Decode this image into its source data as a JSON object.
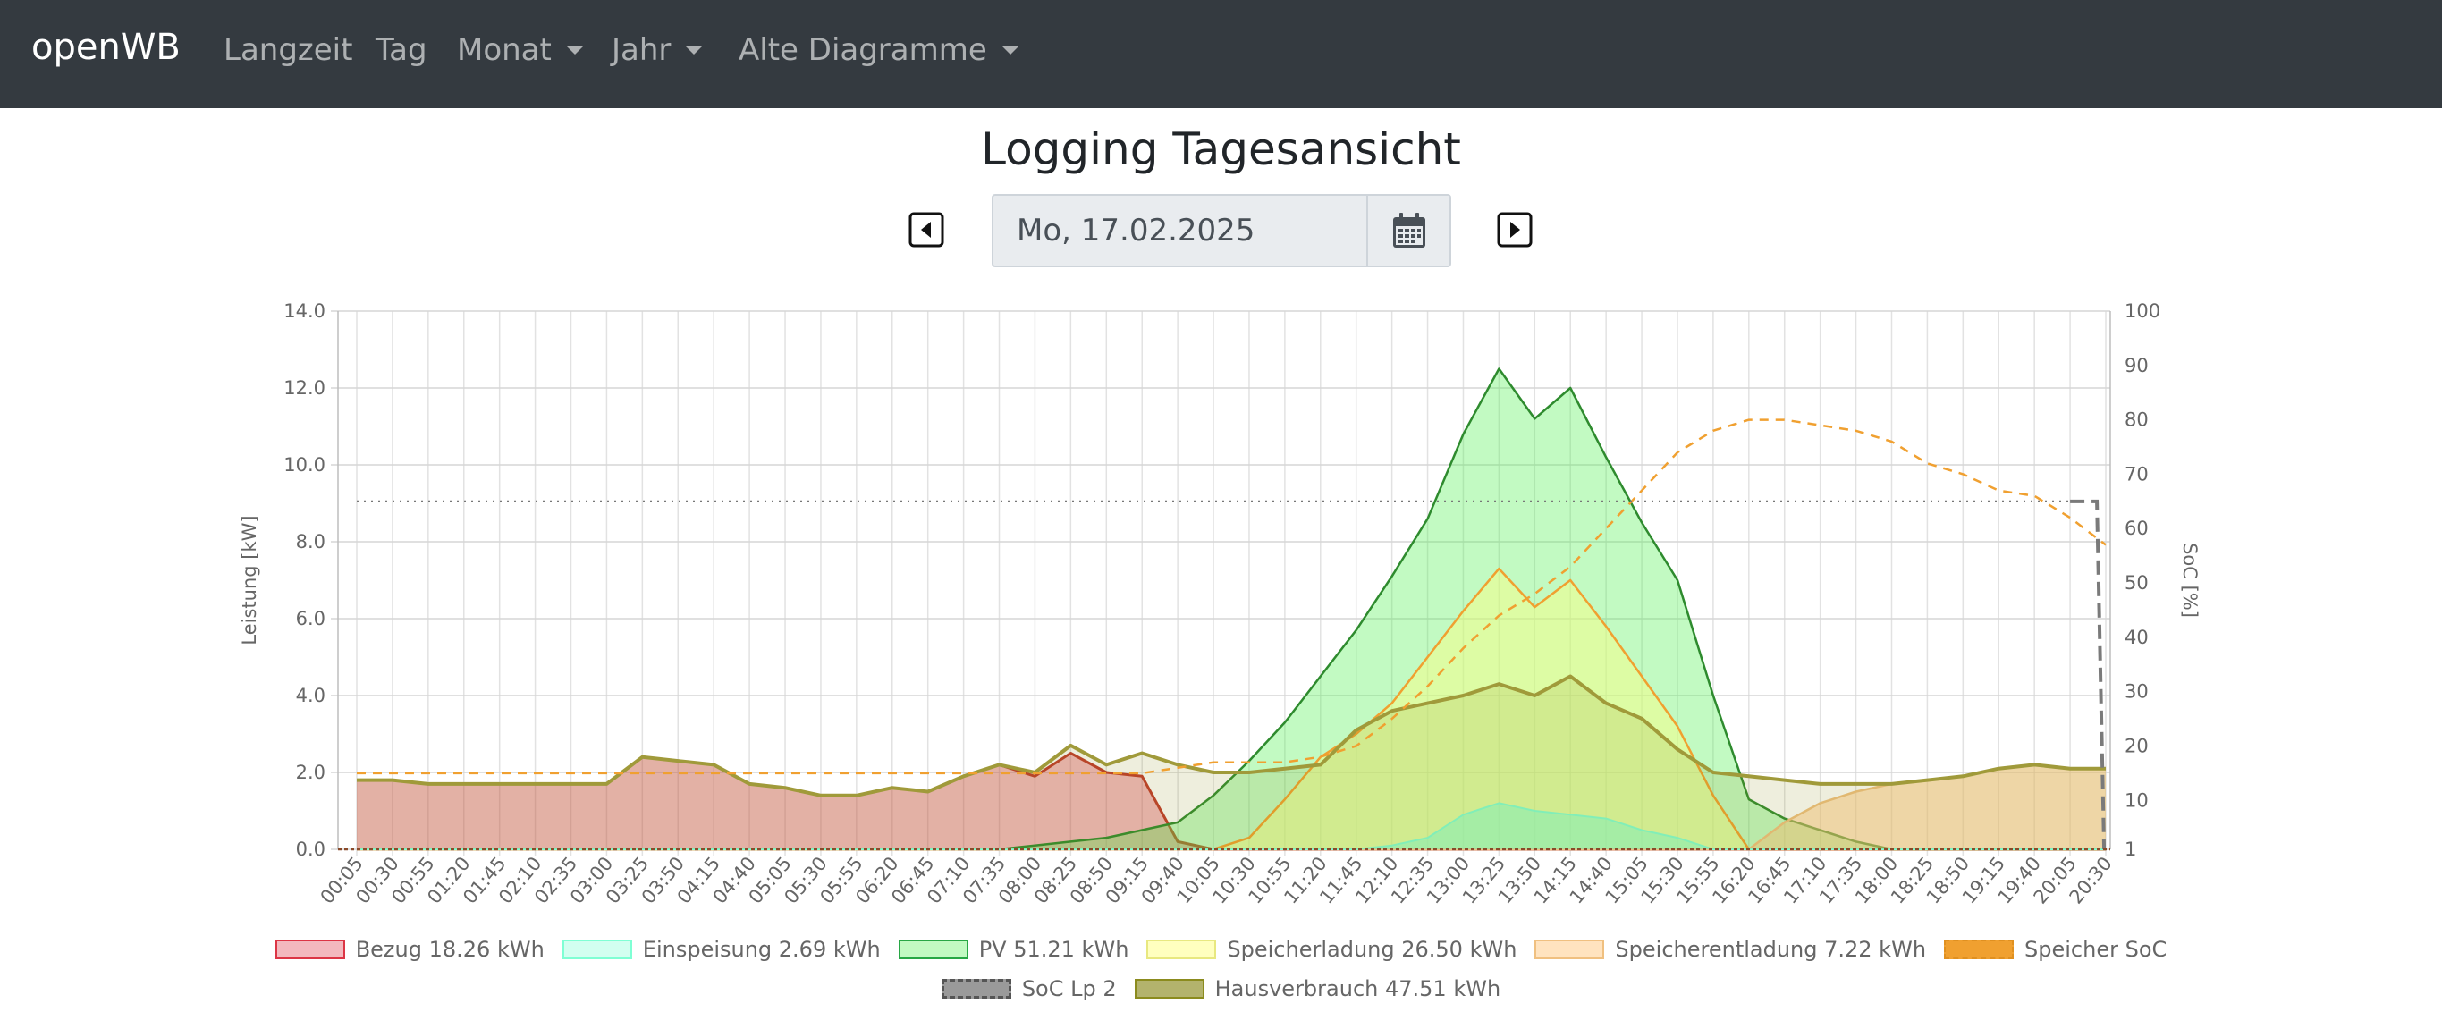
{
  "navbar": {
    "brand": "openWB",
    "items": [
      "Langzeit",
      "Tag",
      "Monat",
      "Jahr",
      "Alte Diagramme"
    ]
  },
  "page": {
    "title": "Logging Tagesansicht",
    "date_value": "Mo, 17.02.2025"
  },
  "icons": {
    "prev": "caret-left-square-icon",
    "next": "caret-right-square-icon",
    "calendar": "calendar-icon"
  },
  "colors": {
    "navbar": "#343a40",
    "bezug": "#dc3545",
    "einspeisung": "#7fffd4",
    "pv": "#28a745",
    "speicherladung": "#ffff80",
    "speicherentladung": "#ffc880",
    "speicher_soc": "#f0a030",
    "soc_lp2": "#808080",
    "hausverbrauch": "#8b8b1e"
  },
  "chart_data": {
    "type": "area",
    "ylabel": "Leistung [kW]",
    "y2label": "SoC [%]",
    "ylim": [
      0,
      14
    ],
    "y2lim": [
      1,
      100
    ],
    "y_ticks": [
      "0.0",
      "2.0",
      "4.0",
      "6.0",
      "8.0",
      "10.0",
      "12.0",
      "14.0"
    ],
    "y2_ticks": [
      "1",
      "10",
      "20",
      "30",
      "40",
      "50",
      "60",
      "70",
      "80",
      "90",
      "100"
    ],
    "x": [
      "00:05",
      "00:30",
      "00:55",
      "01:20",
      "01:45",
      "02:10",
      "02:35",
      "03:00",
      "03:25",
      "03:50",
      "04:15",
      "04:40",
      "05:05",
      "05:30",
      "05:55",
      "06:20",
      "06:45",
      "07:10",
      "07:35",
      "08:00",
      "08:25",
      "08:50",
      "09:15",
      "09:40",
      "10:05",
      "10:30",
      "10:55",
      "11:20",
      "11:45",
      "12:10",
      "12:35",
      "13:00",
      "13:25",
      "13:50",
      "14:15",
      "14:40",
      "15:05",
      "15:30",
      "15:55",
      "16:20",
      "16:45",
      "17:10",
      "17:35",
      "18:00",
      "18:25",
      "18:50",
      "19:15",
      "19:40",
      "20:05",
      "20:30"
    ],
    "grid": true,
    "series": [
      {
        "name": "Bezug 18.26 kWh",
        "axis": "left",
        "values": [
          1.8,
          1.8,
          1.7,
          1.7,
          1.7,
          1.7,
          1.7,
          1.7,
          2.4,
          2.3,
          2.2,
          1.7,
          1.6,
          1.4,
          1.4,
          1.6,
          1.5,
          1.9,
          2.2,
          1.9,
          2.5,
          2.0,
          1.9,
          0.2,
          0,
          0,
          0,
          0,
          0,
          0,
          0,
          0,
          0,
          0,
          0,
          0,
          0,
          0,
          0,
          0,
          0,
          0,
          0,
          0,
          0,
          0,
          0,
          0,
          0,
          0
        ]
      },
      {
        "name": "Einspeisung 2.69 kWh",
        "axis": "left",
        "values": [
          0,
          0,
          0,
          0,
          0,
          0,
          0,
          0,
          0,
          0,
          0,
          0,
          0,
          0,
          0,
          0,
          0,
          0,
          0,
          0,
          0,
          0,
          0,
          0,
          0,
          0,
          0,
          0,
          0,
          0.1,
          0.3,
          0.9,
          1.2,
          1.0,
          0.9,
          0.8,
          0.5,
          0.3,
          0,
          0,
          0,
          0,
          0,
          0,
          0,
          0,
          0,
          0,
          0,
          0
        ]
      },
      {
        "name": "PV 51.21 kWh",
        "axis": "left",
        "values": [
          0,
          0,
          0,
          0,
          0,
          0,
          0,
          0,
          0,
          0,
          0,
          0,
          0,
          0,
          0,
          0,
          0,
          0,
          0,
          0.1,
          0.2,
          0.3,
          0.5,
          0.7,
          1.4,
          2.3,
          3.3,
          4.5,
          5.7,
          7.1,
          8.6,
          10.8,
          12.5,
          11.2,
          12.0,
          10.2,
          8.5,
          7.0,
          4.0,
          1.3,
          0.8,
          0.5,
          0.2,
          0,
          0,
          0,
          0,
          0,
          0,
          0
        ]
      },
      {
        "name": "Speicherladung 26.50 kWh",
        "axis": "left",
        "values": [
          0,
          0,
          0,
          0,
          0,
          0,
          0,
          0,
          0,
          0,
          0,
          0,
          0,
          0,
          0,
          0,
          0,
          0,
          0,
          0,
          0,
          0,
          0,
          0,
          0,
          0.3,
          1.3,
          2.4,
          3.0,
          3.8,
          5.0,
          6.2,
          7.3,
          6.3,
          7.0,
          5.8,
          4.5,
          3.2,
          1.4,
          0,
          0,
          0,
          0,
          0,
          0,
          0,
          0,
          0,
          0,
          0
        ]
      },
      {
        "name": "Speicherentladung 7.22 kWh",
        "axis": "left",
        "values": [
          0,
          0,
          0,
          0,
          0,
          0,
          0,
          0,
          0,
          0,
          0,
          0,
          0,
          0,
          0,
          0,
          0,
          0,
          0,
          0,
          0,
          0,
          0,
          0,
          0,
          0,
          0,
          0,
          0,
          0,
          0,
          0,
          0,
          0,
          0,
          0,
          0,
          0,
          0,
          0,
          0.7,
          1.2,
          1.5,
          1.7,
          1.8,
          1.9,
          2.1,
          2.2,
          2.1,
          2.1
        ]
      },
      {
        "name": "Speicher SoC",
        "axis": "right",
        "values": [
          15,
          15,
          15,
          15,
          15,
          15,
          15,
          15,
          15,
          15,
          15,
          15,
          15,
          15,
          15,
          15,
          15,
          15,
          15,
          15,
          15,
          15,
          15,
          16,
          17,
          17,
          17,
          18,
          20,
          25,
          31,
          38,
          44,
          48,
          53,
          60,
          67,
          74,
          78,
          80,
          80,
          79,
          78,
          76,
          72,
          70,
          67,
          66,
          62,
          57
        ]
      },
      {
        "name": "SoC Lp 2",
        "axis": "right",
        "values": [
          65,
          65,
          65,
          65,
          65,
          65,
          65,
          65,
          65,
          65,
          65,
          65,
          65,
          65,
          65,
          65,
          65,
          65,
          65,
          65,
          65,
          65,
          65,
          65,
          65,
          65,
          65,
          65,
          65,
          65,
          65,
          65,
          65,
          65,
          65,
          65,
          65,
          65,
          65,
          65,
          65,
          65,
          65,
          65,
          65,
          65,
          65,
          65,
          65,
          1
        ]
      },
      {
        "name": "Hausverbrauch 47.51 kWh",
        "axis": "left",
        "values": [
          1.8,
          1.8,
          1.7,
          1.7,
          1.7,
          1.7,
          1.7,
          1.7,
          2.4,
          2.3,
          2.2,
          1.7,
          1.6,
          1.4,
          1.4,
          1.6,
          1.5,
          1.9,
          2.2,
          2.0,
          2.7,
          2.2,
          2.5,
          2.2,
          2.0,
          2.0,
          2.1,
          2.2,
          3.1,
          3.6,
          3.8,
          4.0,
          4.3,
          4.0,
          4.5,
          3.8,
          3.4,
          2.6,
          2.0,
          1.9,
          1.8,
          1.7,
          1.7,
          1.7,
          1.8,
          1.9,
          2.1,
          2.2,
          2.1,
          2.1
        ]
      }
    ]
  }
}
